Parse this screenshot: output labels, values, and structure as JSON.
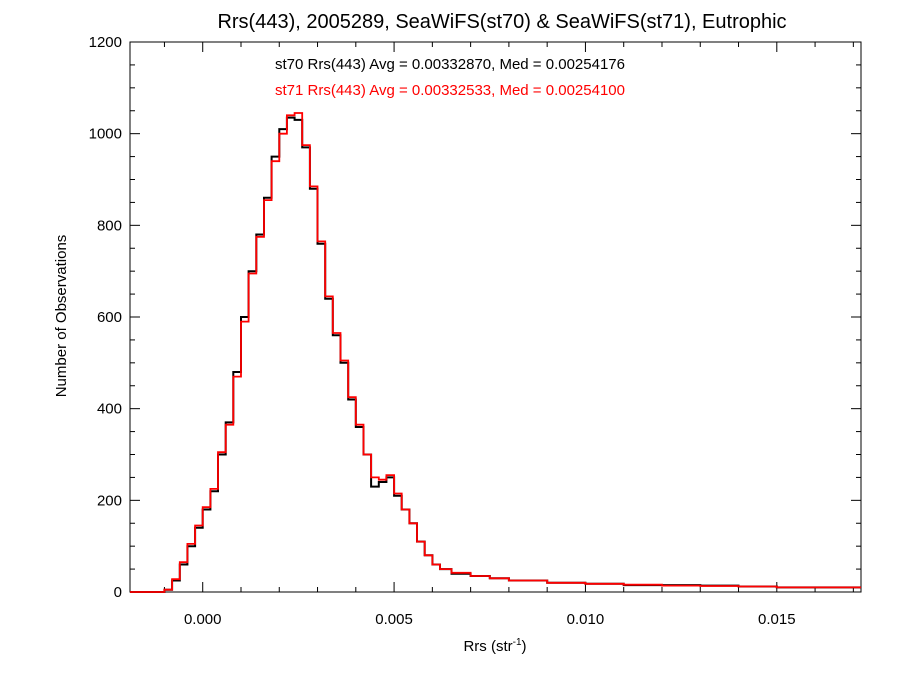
{
  "chart_data": {
    "type": "line",
    "title": "Rrs(443), 2005289, SeaWiFS(st70) & SeaWiFS(st71), Eutrophic",
    "xlabel": "Rrs (str",
    "xlabel_sup": "-1",
    "xlabel_close": ")",
    "ylabel": "Number of Observations",
    "xlim": [
      -0.0019,
      0.0172
    ],
    "ylim": [
      0,
      1200
    ],
    "xticks": [
      0.0,
      0.005,
      0.01,
      0.015
    ],
    "xtick_labels": [
      "0.000",
      "0.005",
      "0.010",
      "0.015"
    ],
    "yticks": [
      0,
      200,
      400,
      600,
      800,
      1000,
      1200
    ],
    "ytick_labels": [
      "0",
      "200",
      "400",
      "600",
      "800",
      "1000",
      "1200"
    ],
    "grid": false,
    "annotations": [
      {
        "text": "st70 Rrs(443) Avg = 0.00332870, Med = 0.00254176",
        "color": "#000000"
      },
      {
        "text": "st71 Rrs(443) Avg = 0.00332533, Med = 0.00254100",
        "color": "#ff0000"
      }
    ],
    "series": [
      {
        "color": "#000000",
        "x": [
          -0.0019,
          -0.0012,
          -0.001,
          -0.0008,
          -0.0006,
          -0.0004,
          -0.0002,
          0.0,
          0.0002,
          0.0004,
          0.0006,
          0.0008,
          0.001,
          0.0012,
          0.0014,
          0.0016,
          0.0018,
          0.002,
          0.0022,
          0.0024,
          0.0026,
          0.0028,
          0.003,
          0.0032,
          0.0034,
          0.0036,
          0.0038,
          0.004,
          0.0042,
          0.0044,
          0.0046,
          0.0048,
          0.005,
          0.0052,
          0.0054,
          0.0056,
          0.0058,
          0.006,
          0.0062,
          0.0065,
          0.007,
          0.0075,
          0.008,
          0.009,
          0.01,
          0.011,
          0.012,
          0.013,
          0.014,
          0.015,
          0.016,
          0.0172
        ],
        "y": [
          0,
          0,
          5,
          25,
          60,
          100,
          140,
          180,
          220,
          300,
          370,
          480,
          600,
          700,
          780,
          860,
          950,
          1010,
          1035,
          1030,
          970,
          880,
          760,
          640,
          560,
          500,
          420,
          360,
          300,
          230,
          240,
          250,
          210,
          180,
          150,
          110,
          80,
          60,
          50,
          40,
          35,
          30,
          25,
          20,
          18,
          15,
          15,
          14,
          12,
          10,
          10,
          10
        ]
      },
      {
        "color": "#ff0000",
        "x": [
          -0.0019,
          -0.0012,
          -0.001,
          -0.0008,
          -0.0006,
          -0.0004,
          -0.0002,
          0.0,
          0.0002,
          0.0004,
          0.0006,
          0.0008,
          0.001,
          0.0012,
          0.0014,
          0.0016,
          0.0018,
          0.002,
          0.0022,
          0.0024,
          0.0026,
          0.0028,
          0.003,
          0.0032,
          0.0034,
          0.0036,
          0.0038,
          0.004,
          0.0042,
          0.0044,
          0.0046,
          0.0048,
          0.005,
          0.0052,
          0.0054,
          0.0056,
          0.0058,
          0.006,
          0.0062,
          0.0065,
          0.007,
          0.0075,
          0.008,
          0.009,
          0.01,
          0.011,
          0.012,
          0.013,
          0.014,
          0.015,
          0.016,
          0.0172
        ],
        "y": [
          0,
          0,
          5,
          28,
          65,
          105,
          145,
          185,
          225,
          305,
          365,
          470,
          590,
          695,
          775,
          855,
          940,
          1000,
          1040,
          1045,
          975,
          885,
          765,
          645,
          565,
          505,
          425,
          365,
          300,
          250,
          245,
          255,
          215,
          180,
          150,
          110,
          80,
          60,
          50,
          42,
          35,
          30,
          25,
          20,
          18,
          16,
          14,
          13,
          12,
          10,
          10,
          10
        ]
      }
    ]
  }
}
